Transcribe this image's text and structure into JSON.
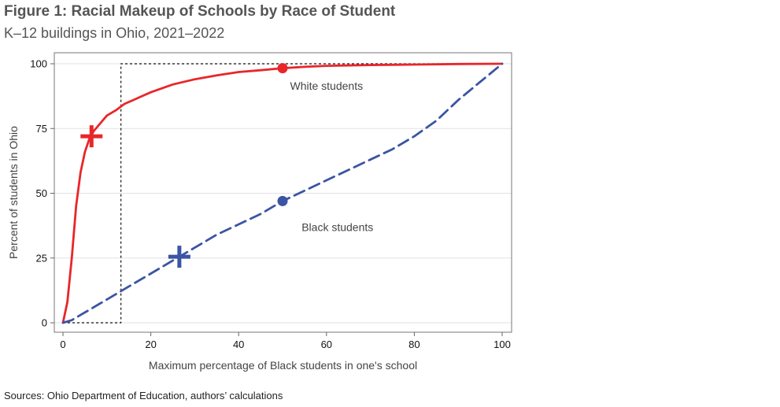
{
  "header": {
    "title": "Figure 1: Racial Makeup of Schools by Race of Student",
    "subtitle": "K–12 buildings in Ohio, 2021–2022"
  },
  "footer": {
    "source": "Sources: Ohio Department of Education, authors’ calculations"
  },
  "chart_data": {
    "type": "line",
    "xlabel": "Maximum percentage of Black students in one's school",
    "ylabel": "Percent of students in Ohio",
    "xlim": [
      0,
      100
    ],
    "ylim": [
      0,
      100
    ],
    "xticks": [
      0,
      20,
      40,
      60,
      80,
      100
    ],
    "yticks": [
      0,
      25,
      50,
      75,
      100
    ],
    "grid": "horizontal",
    "series": [
      {
        "name": "White students",
        "color": "#e8262a",
        "style": "solid",
        "x": [
          0,
          1,
          2,
          3,
          4,
          5,
          6,
          7,
          8,
          9,
          10,
          12,
          14,
          16,
          18,
          20,
          25,
          30,
          35,
          40,
          45,
          50,
          55,
          60,
          70,
          80,
          90,
          100
        ],
        "y": [
          0,
          8,
          25,
          45,
          58,
          66,
          71,
          74,
          76,
          78,
          80,
          82,
          84.5,
          86,
          87.5,
          89,
          92,
          94,
          95.5,
          96.8,
          97.5,
          98.3,
          98.8,
          99.2,
          99.5,
          99.7,
          99.9,
          100
        ]
      },
      {
        "name": "Black students",
        "color": "#3b55a4",
        "style": "dashed",
        "x": [
          0,
          2,
          4,
          6,
          8,
          10,
          12,
          14,
          16,
          20,
          25,
          30,
          35,
          40,
          45,
          50,
          55,
          60,
          65,
          70,
          75,
          80,
          85,
          90,
          95,
          100
        ],
        "y": [
          0,
          1,
          3,
          5,
          7,
          9,
          11,
          13,
          15,
          19,
          24,
          29,
          34,
          38,
          42,
          47,
          51,
          55,
          59,
          63,
          67,
          72,
          78,
          86,
          93,
          100
        ]
      }
    ],
    "markers": [
      {
        "series": "White students",
        "shape": "plus",
        "x": 6.5,
        "y": 72
      },
      {
        "series": "White students",
        "shape": "dot",
        "x": 50,
        "y": 98.3
      },
      {
        "series": "Black students",
        "shape": "plus",
        "x": 26.5,
        "y": 25.5
      },
      {
        "series": "Black students",
        "shape": "dot",
        "x": 50,
        "y": 47
      }
    ],
    "reference_box": {
      "x": [
        0,
        13.2
      ],
      "y": [
        0,
        100
      ],
      "style": "dotted"
    },
    "annotations": [
      {
        "text": "White students",
        "x": 60,
        "y": 91.5
      },
      {
        "text": "Black students",
        "x": 62.5,
        "y": 37
      }
    ]
  }
}
